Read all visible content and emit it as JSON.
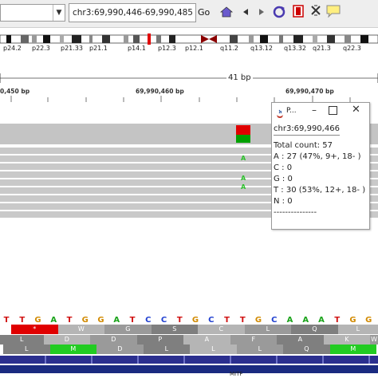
{
  "toolbar": {
    "locus": "chr3:69,990,446-69,990,485",
    "go_label": "Go",
    "icons": [
      "home-icon",
      "back-icon",
      "forward-icon",
      "refresh-icon",
      "roi-icon",
      "close-icon",
      "popup-text-icon"
    ]
  },
  "ideogram": {
    "bands": [
      "p24.2",
      "p22.3",
      "p21.33",
      "p21.1",
      "p14.1",
      "p12.3",
      "p12.1",
      "q11.2",
      "q13.12",
      "q13.32",
      "q21.3",
      "q22.3"
    ]
  },
  "ruler": {
    "span": "41 bp",
    "positions": [
      "0,450 bp",
      "69,990,460 bp",
      "69,990,470 bp"
    ]
  },
  "popup": {
    "title": "P...",
    "locus": "chr3:69,990,466",
    "total": "Total count: 57",
    "a": "A : 27 (47%, 9+, 18- )",
    "c": "C : 0",
    "g": "G : 0",
    "t": "T : 30 (53%, 12+, 18- )",
    "n": "N : 0",
    "separator": "---------------"
  },
  "reads": {
    "mismatch_base": "A"
  },
  "sequence": {
    "bases": [
      "T",
      "T",
      "G",
      "A",
      "T",
      "G",
      "G",
      "A",
      "T",
      "C",
      "C",
      "T",
      "G",
      "C",
      "T",
      "T",
      "G",
      "C",
      "A",
      "A",
      "A",
      "T",
      "G",
      "G"
    ]
  },
  "translation": {
    "frame1": [
      "*",
      "W",
      "G",
      "S",
      "C",
      "L",
      "Q",
      "L"
    ],
    "frame2": [
      "L",
      "D",
      "D",
      "P",
      "A",
      "F",
      "A",
      "K",
      "W"
    ],
    "frame3": [
      "L",
      "M",
      "D",
      "L",
      "L",
      "L",
      "Q",
      "M"
    ]
  },
  "gene": {
    "name": "MITF"
  },
  "colors": {
    "coverage_red": "#e00000",
    "coverage_green": "#00a000",
    "mismatch_green": "#2bbf2b",
    "stop_red": "#e00000",
    "start_green": "#22cc22",
    "gene_navy": "#1a2a80"
  }
}
